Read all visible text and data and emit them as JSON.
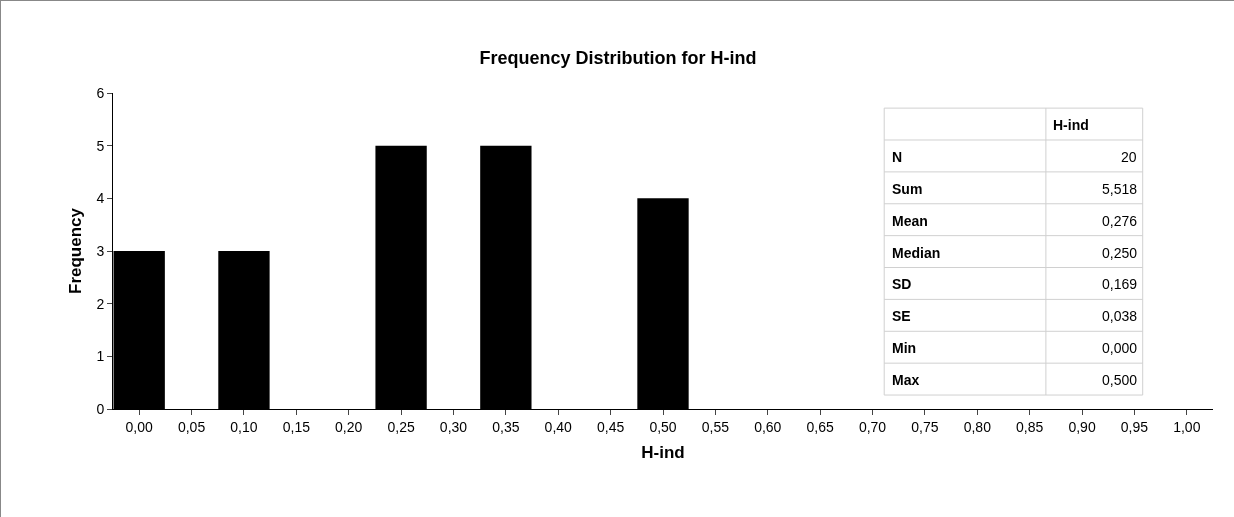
{
  "chart_data": {
    "type": "bar",
    "title": "Frequency Distribution for H-ind",
    "xlabel": "H-ind",
    "ylabel": "Frequency",
    "categories": [
      "0,00",
      "0,05",
      "0,10",
      "0,15",
      "0,20",
      "0,25",
      "0,30",
      "0,35",
      "0,40",
      "0,45",
      "0,50",
      "0,55",
      "0,60",
      "0,65",
      "0,70",
      "0,75",
      "0,80",
      "0,85",
      "0,90",
      "0,95",
      "1,00"
    ],
    "values": [
      3,
      0,
      3,
      0,
      0,
      5,
      0,
      5,
      0,
      0,
      4,
      0,
      0,
      0,
      0,
      0,
      0,
      0,
      0,
      0,
      0
    ],
    "color": "#000000",
    "ylim": [
      0,
      6
    ],
    "yticks": [
      0,
      1,
      2,
      3,
      4,
      5,
      6
    ],
    "annotations": [
      "H-ind",
      "N",
      "20",
      "Sum",
      "5,518",
      "Mean",
      "0,276",
      "Median",
      "0,250",
      "SD",
      "0,169",
      "SE",
      "0,038",
      "Min",
      "0,000",
      "Max",
      "0,500"
    ]
  }
}
